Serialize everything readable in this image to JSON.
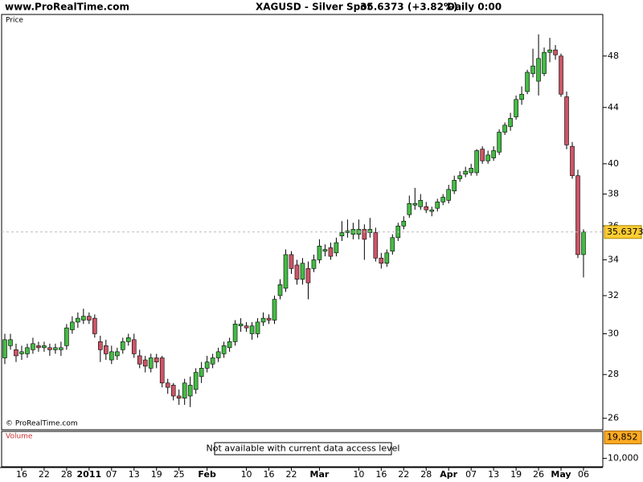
{
  "header": {
    "site": "www.ProRealTime.com",
    "instrument": "XAGUSD - Silver Spot",
    "quote": "35.6373 (+3.82%)",
    "period": "Daily  0:00"
  },
  "chart_data": {
    "type": "candlestick",
    "title": "Price",
    "copyright": "© ProRealTime.com",
    "log_scale": true,
    "grid": false,
    "up_color": "#44bb44",
    "down_color": "#cc5566",
    "categories": [
      null,
      null,
      null,
      "16",
      null,
      null,
      null,
      "22",
      null,
      null,
      null,
      "28",
      null,
      null,
      null,
      "2011",
      null,
      null,
      null,
      "07",
      null,
      null,
      null,
      "13",
      null,
      null,
      null,
      "19",
      null,
      null,
      null,
      "25",
      null,
      null,
      null,
      null,
      "Feb",
      null,
      null,
      null,
      null,
      null,
      null,
      "10",
      null,
      null,
      null,
      "16",
      null,
      null,
      null,
      "22",
      null,
      null,
      null,
      null,
      "Mar",
      null,
      null,
      null,
      null,
      null,
      null,
      "10",
      null,
      null,
      null,
      "16",
      null,
      null,
      null,
      "22",
      null,
      null,
      null,
      "28",
      null,
      null,
      null,
      "Apr",
      null,
      null,
      null,
      "07",
      null,
      null,
      null,
      "13",
      null,
      null,
      null,
      "19",
      null,
      null,
      null,
      "26",
      null,
      null,
      null,
      "May",
      null,
      null,
      null,
      "06"
    ],
    "open": [
      28.8,
      29.4,
      29.2,
      29.0,
      29.0,
      29.2,
      29.4,
      29.3,
      29.3,
      29.2,
      29.2,
      29.4,
      30.2,
      30.6,
      30.7,
      30.9,
      30.8,
      29.6,
      29.4,
      28.7,
      28.9,
      29.2,
      29.6,
      29.7,
      28.9,
      28.7,
      28.3,
      28.8,
      28.8,
      27.6,
      27.5,
      27.0,
      26.9,
      27.0,
      27.3,
      27.9,
      28.3,
      28.5,
      28.8,
      29.0,
      29.3,
      29.6,
      30.4,
      30.4,
      30.0,
      30.0,
      30.6,
      30.8,
      30.7,
      32.0,
      32.4,
      34.3,
      33.7,
      32.9,
      33.5,
      33.5,
      34.0,
      34.5,
      34.7,
      34.4,
      35.4,
      35.6,
      35.5,
      35.5,
      35.8,
      35.6,
      35.6,
      34.1,
      33.8,
      34.5,
      35.3,
      36.0,
      36.7,
      37.3,
      37.2,
      37.2,
      36.9,
      37.1,
      37.5,
      37.6,
      38.2,
      39.0,
      39.3,
      39.4,
      39.4,
      41.0,
      40.2,
      40.4,
      40.8,
      42.2,
      42.6,
      43.3,
      44.6,
      45.2,
      46.6,
      46.0,
      46.6,
      48.3,
      48.5,
      48.0,
      44.8,
      41.2,
      39.2,
      34.3
    ],
    "high": [
      30.0,
      30.0,
      29.5,
      29.4,
      29.5,
      29.8,
      29.6,
      29.6,
      29.5,
      29.5,
      29.6,
      30.5,
      30.9,
      31.1,
      31.3,
      31.1,
      31.0,
      29.9,
      29.7,
      29.4,
      29.3,
      29.8,
      30.0,
      30.0,
      29.2,
      28.9,
      29.0,
      29.0,
      28.9,
      27.8,
      27.6,
      27.3,
      27.8,
      27.9,
      28.3,
      28.6,
      28.9,
      29.0,
      29.3,
      29.6,
      29.8,
      30.7,
      30.8,
      30.6,
      30.6,
      30.8,
      31.1,
      31.0,
      32.0,
      32.9,
      34.6,
      34.5,
      34.0,
      34.1,
      33.9,
      34.3,
      35.2,
      34.9,
      35.0,
      35.3,
      36.3,
      36.4,
      36.2,
      36.4,
      36.1,
      36.5,
      35.9,
      34.4,
      34.6,
      35.5,
      36.2,
      36.6,
      37.9,
      38.4,
      38.0,
      37.5,
      37.2,
      37.7,
      38.0,
      38.6,
      39.2,
      39.5,
      39.8,
      40.0,
      41.0,
      41.2,
      40.9,
      41.2,
      42.4,
      42.9,
      43.6,
      44.9,
      45.6,
      46.9,
      48.6,
      49.8,
      48.7,
      49.5,
      48.9,
      48.2,
      45.2,
      41.5,
      39.6,
      35.8
    ],
    "low": [
      28.5,
      29.2,
      28.6,
      28.7,
      28.8,
      29.0,
      29.1,
      29.1,
      28.9,
      29.0,
      28.9,
      29.2,
      30.0,
      30.3,
      30.5,
      30.5,
      29.8,
      28.6,
      28.7,
      28.5,
      28.7,
      29.0,
      29.4,
      28.8,
      28.3,
      28.1,
      28.1,
      28.3,
      27.4,
      27.1,
      26.8,
      26.6,
      26.6,
      26.5,
      27.1,
      27.6,
      28.1,
      28.3,
      28.6,
      28.8,
      29.1,
      29.4,
      30.1,
      30.1,
      29.7,
      29.8,
      30.4,
      30.5,
      30.5,
      31.8,
      32.2,
      33.2,
      32.6,
      32.6,
      31.8,
      33.3,
      33.8,
      34.2,
      34.0,
      34.2,
      35.1,
      35.3,
      35.2,
      35.2,
      34.0,
      35.3,
      33.9,
      33.5,
      33.6,
      34.3,
      35.1,
      35.8,
      36.5,
      37.0,
      37.0,
      36.8,
      36.6,
      36.9,
      37.3,
      37.4,
      38.0,
      38.8,
      39.1,
      39.2,
      39.2,
      40.0,
      40.0,
      40.2,
      40.6,
      42.0,
      42.3,
      43.1,
      44.2,
      45.0,
      46.3,
      44.9,
      46.4,
      47.5,
      47.7,
      44.8,
      41.0,
      39.0,
      34.1,
      33.0
    ],
    "close": [
      29.7,
      29.7,
      28.9,
      29.1,
      29.3,
      29.5,
      29.3,
      29.4,
      29.2,
      29.3,
      29.3,
      30.3,
      30.6,
      30.8,
      30.9,
      30.7,
      30.0,
      29.2,
      29.0,
      29.1,
      29.1,
      29.6,
      29.8,
      29.0,
      28.5,
      28.4,
      28.8,
      28.6,
      27.6,
      27.4,
      27.0,
      26.9,
      27.6,
      27.5,
      28.1,
      28.3,
      28.6,
      28.8,
      29.1,
      29.4,
      29.6,
      30.5,
      30.5,
      30.3,
      30.4,
      30.6,
      30.8,
      30.7,
      31.8,
      32.6,
      34.3,
      33.5,
      32.9,
      33.8,
      32.7,
      34.0,
      34.8,
      34.6,
      34.2,
      35.0,
      35.6,
      35.7,
      35.8,
      35.8,
      35.2,
      35.8,
      34.1,
      33.8,
      34.4,
      35.3,
      36.0,
      36.3,
      37.4,
      37.4,
      37.6,
      37.0,
      37.0,
      37.5,
      37.8,
      38.3,
      38.9,
      39.2,
      39.5,
      39.7,
      40.9,
      40.2,
      40.6,
      40.9,
      42.2,
      42.7,
      43.2,
      44.6,
      45.0,
      46.7,
      47.2,
      47.8,
      48.3,
      48.5,
      48.1,
      45.0,
      41.3,
      39.2,
      34.3,
      35.6373
    ],
    "ylim": [
      25.5,
      51.5
    ],
    "yticks": [
      26,
      28,
      30,
      32,
      34,
      36,
      38,
      40,
      44,
      48
    ]
  },
  "volume": {
    "title": "Volume",
    "message": "Not available with current data access level",
    "last_value": {
      "value": 19852,
      "label": "19,852"
    },
    "ylim": [
      0,
      22700
    ],
    "yticks": [
      {
        "value": 10000,
        "label": "10,000"
      }
    ]
  }
}
